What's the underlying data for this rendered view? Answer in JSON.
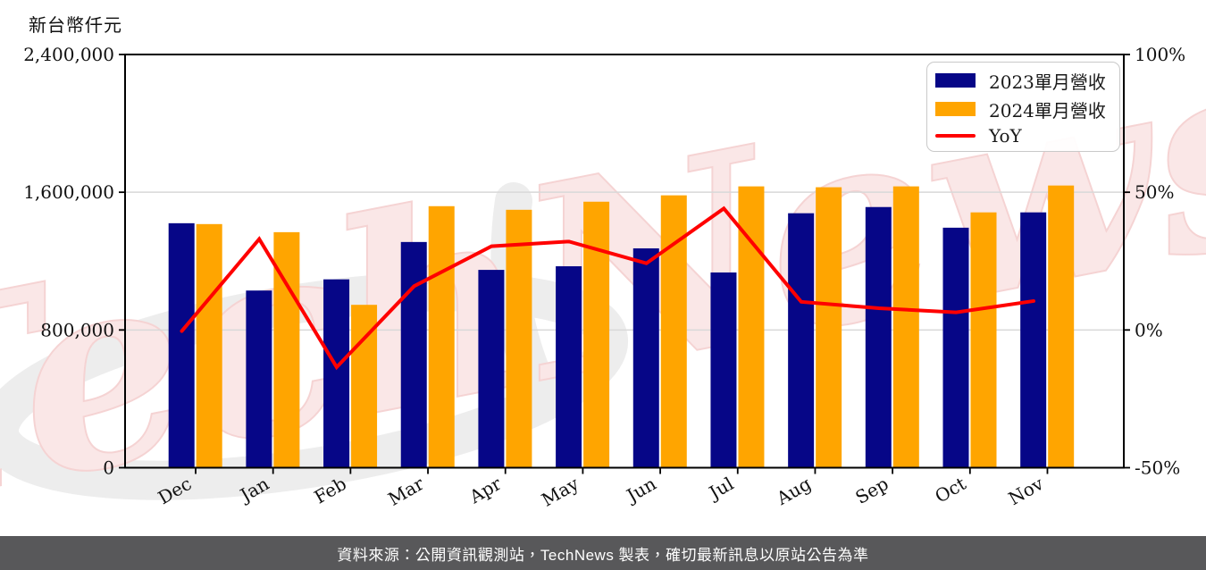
{
  "unit_label": "新台幣仟元",
  "watermark_text": "TechNews",
  "legend": {
    "items": [
      {
        "label": "2023單月營收",
        "color": "#060687",
        "swatch": "rect"
      },
      {
        "label": "2024單月營收",
        "color": "#FFA500",
        "swatch": "rect"
      },
      {
        "label": "YoY",
        "color": "#FF0000",
        "swatch": "line"
      }
    ]
  },
  "footer_text": "資料來源：公開資訊觀測站，TechNews 製表，確切最新訊息以原站公告為準",
  "chart_data": {
    "type": "bar",
    "title": "",
    "categories": [
      "Dec",
      "Jan",
      "Feb",
      "Mar",
      "Apr",
      "May",
      "Jun",
      "Jul",
      "Aug",
      "Sep",
      "Oct",
      "Nov"
    ],
    "series": [
      {
        "name": "2023單月營收",
        "type": "bar",
        "axis": "left",
        "color": "#060687",
        "values": [
          1420000,
          1029000,
          1094000,
          1311000,
          1149000,
          1170000,
          1274000,
          1134000,
          1478000,
          1514000,
          1394000,
          1483000
        ]
      },
      {
        "name": "2024單月營收",
        "type": "bar",
        "axis": "left",
        "color": "#FFA500",
        "values": [
          1415000,
          1368000,
          946000,
          1519000,
          1498000,
          1545000,
          1582000,
          1634000,
          1629000,
          1634000,
          1483000,
          1639000
        ]
      },
      {
        "name": "YoY",
        "type": "line",
        "axis": "right",
        "color": "#FF0000",
        "unit": "%",
        "values": [
          -0.4,
          33.0,
          -13.5,
          15.9,
          30.4,
          32.1,
          24.2,
          44.1,
          10.2,
          7.9,
          6.4,
          10.5
        ]
      }
    ],
    "left_axis": {
      "label": "新台幣仟元",
      "min": 0,
      "max": 2400000,
      "tick_values": [
        0,
        800000,
        1600000,
        2400000
      ],
      "tick_labels": [
        "0",
        "800,000",
        "1,600,000",
        "2,400,000"
      ]
    },
    "right_axis": {
      "min": -50,
      "max": 100,
      "tick_values": [
        -50,
        0,
        50,
        100
      ],
      "tick_labels": [
        "-50%",
        "0%",
        "50%",
        "100%"
      ]
    },
    "grid": {
      "horizontal_at": [
        800000,
        1600000
      ],
      "color": "#d8d8d8"
    },
    "legend_position": "upper right"
  }
}
